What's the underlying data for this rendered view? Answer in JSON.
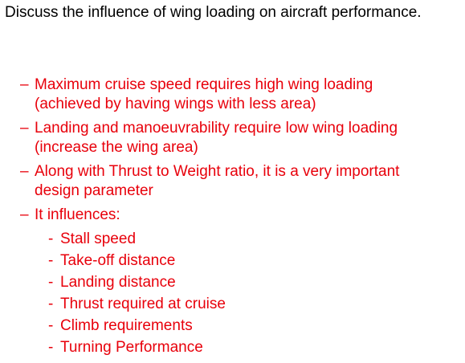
{
  "question": "Discuss the influence of wing loading on aircraft performance.",
  "points": [
    {
      "marker": "–",
      "text": "Maximum cruise speed requires high wing loading (achieved by having wings with less area)"
    },
    {
      "marker": "–",
      "text": "Landing and manoeuvrability require low wing loading (increase the wing area)"
    },
    {
      "marker": "–",
      "text": "Along with Thrust to Weight ratio, it is a very important design parameter"
    },
    {
      "marker": "–",
      "text": "It influences:"
    }
  ],
  "influences": [
    {
      "marker": "-",
      "text": "Stall speed"
    },
    {
      "marker": "-",
      "text": "Take-off distance"
    },
    {
      "marker": "-",
      "text": "Landing distance"
    },
    {
      "marker": "-",
      "text": "Thrust required at cruise"
    },
    {
      "marker": "-",
      "text": "Climb requirements"
    },
    {
      "marker": "-",
      "text": "Turning Performance"
    }
  ],
  "colors": {
    "question_text": "#000000",
    "bullet_text": "#e8000b"
  }
}
